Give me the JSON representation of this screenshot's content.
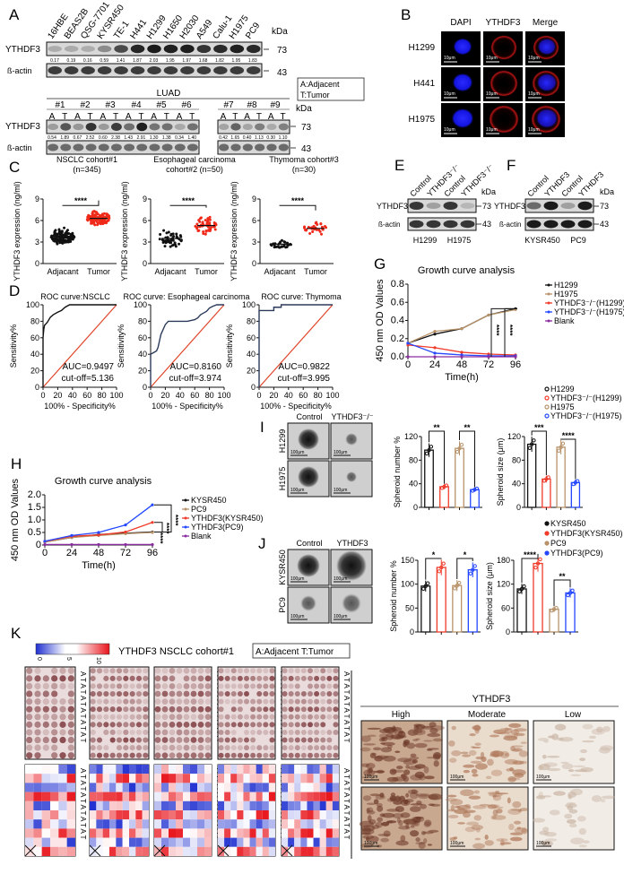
{
  "panels": {
    "A": "A",
    "B": "B",
    "C": "C",
    "D": "D",
    "E": "E",
    "F": "F",
    "G": "G",
    "H": "H",
    "I": "I",
    "J": "J",
    "K": "K"
  },
  "common": {
    "kda": "kDa",
    "ythdf3": "YTHDF3",
    "actin": "ß-actin",
    "mw_ythdf3": "73",
    "mw_actin": "43",
    "scale_10": "10μm",
    "scale_100": "100μm"
  },
  "panel_a": {
    "cell_lines": [
      "16HBE",
      "BEAS2B",
      "QSG-7701",
      "KYSR450",
      "TE-1",
      "H441",
      "H1299",
      "H1650",
      "H2030",
      "A549",
      "Calu-1",
      "H1975",
      "PC9"
    ],
    "quant": [
      "0.17",
      "0.19",
      "0.16",
      "0.59",
      "1.41",
      "1.87",
      "2.03",
      "1.95",
      "1.97",
      "1.68",
      "1.82",
      "1.95",
      "1.83"
    ],
    "intensity": [
      0.17,
      0.19,
      0.16,
      0.59,
      1.41,
      1.87,
      2.03,
      1.95,
      1.97,
      1.68,
      1.82,
      1.95,
      1.83
    ],
    "legend": [
      "A:Adjacent",
      "T:Tumor"
    ],
    "luad_title": "LUAD",
    "patients": [
      "#1",
      "#2",
      "#3",
      "#4",
      "#5",
      "#6",
      "#7",
      "#8",
      "#9"
    ],
    "at": [
      "A",
      "T"
    ],
    "luad_quant": [
      "0.54",
      "1.89",
      "0.67",
      "2.52",
      "0.60",
      "2.38",
      "1.43",
      "2.91",
      "1.30",
      "1.38",
      "0.34",
      "1.40",
      "0.42",
      "1.65",
      "0.40",
      "1.13",
      "0.30",
      "1.10"
    ],
    "luad_intensity": [
      0.54,
      1.89,
      0.67,
      2.52,
      0.6,
      2.38,
      1.43,
      2.91,
      1.3,
      1.38,
      0.34,
      1.4,
      0.42,
      1.65,
      0.4,
      1.13,
      0.3,
      1.1
    ]
  },
  "panel_b": {
    "columns": [
      "DAPI",
      "YTHDF3",
      "Merge"
    ],
    "rows": [
      "H1299",
      "H441",
      "H1975"
    ],
    "colors": {
      "dapi": "#1a1aff",
      "ythdf3": "#d01010"
    }
  },
  "panel_e": {
    "lanes": [
      "Control",
      "YTHDF3⁻/⁻",
      "Control",
      "YTHDF3⁻/⁻"
    ],
    "cells": [
      "H1299",
      "H1975"
    ],
    "intensity": [
      1,
      0.2,
      1,
      0.02
    ]
  },
  "panel_f": {
    "lanes": [
      "Control",
      "YTHDF3",
      "Control",
      "YTHDF3"
    ],
    "cells": [
      "KYSR450",
      "PC9"
    ],
    "intensity": [
      0.6,
      1.3,
      0.2,
      1.2
    ]
  },
  "panel_i": {
    "columns": [
      "Control",
      "YTHDF3⁻/⁻"
    ],
    "rows": [
      "H1299",
      "H1975"
    ],
    "legend": [
      "H1299",
      "YTHDF3⁻/⁻(H1299)",
      "H1975",
      "YTHDF3⁻/⁻(H1975)"
    ]
  },
  "panel_j": {
    "columns": [
      "Control",
      "YTHDF3"
    ],
    "rows": [
      "KYSR450",
      "PC9"
    ],
    "legend": [
      "KYSR450",
      "YTHDF3(KYSR450)",
      "PC9",
      "YTHDF3(PC9)"
    ]
  },
  "panel_k": {
    "colorbar_ticks": [
      "0",
      "5",
      "10"
    ],
    "title": "YTHDF3  NSCLC cohort#1",
    "legend": "A:Adjacent  T:Tumor",
    "at_column": "A T A T A T A T A T A T",
    "ihc_title": "YTHDF3",
    "ihc_levels": [
      "High",
      "Moderate",
      "Low"
    ],
    "colors": {
      "low": "#1f2fd0",
      "mid": "#ffffff",
      "high": "#e8141b"
    }
  },
  "series_colors": {
    "black": "#111111",
    "tan": "#b8936a",
    "red": "#f03a2a",
    "blue": "#2447ff",
    "purple": "#8a2ca0",
    "roc_ref": "#e0452a",
    "roc_curve": "#2b3a5a"
  },
  "chart_data": [
    {
      "type": "scatter",
      "title": "NSCLC cohort#1",
      "subtitle": "(n=345)",
      "ylabel": "YTHDF3 expression (ng/ml)",
      "categories": [
        "Adjacant",
        "Tumor"
      ],
      "ylim": [
        0,
        9
      ],
      "yticks": [
        "0",
        "3",
        "6",
        "9"
      ],
      "mean": [
        3.8,
        6.3
      ],
      "sd": [
        0.9,
        0.8
      ],
      "n": 345,
      "significance": "****"
    },
    {
      "type": "scatter",
      "title": "Esophageal carcinoma",
      "subtitle": "cohort#2  (n=50)",
      "ylabel": "YTHDF3 expression (ng/ml)",
      "categories": [
        "Adjacant",
        "Tumor"
      ],
      "ylim": [
        0,
        9
      ],
      "yticks": [
        "0",
        "3",
        "6",
        "9"
      ],
      "mean": [
        3.5,
        5.3
      ],
      "sd": [
        1.1,
        1.1
      ],
      "n": 50,
      "significance": "****"
    },
    {
      "type": "scatter",
      "title": "Thymoma cohort#3",
      "subtitle": "(n=30)",
      "ylabel": "YTHDF3 expression (ng/ml)",
      "categories": [
        "Adjacant",
        "Tumor"
      ],
      "ylim": [
        0,
        9
      ],
      "yticks": [
        "0",
        "3",
        "6",
        "9"
      ],
      "mean": [
        2.7,
        4.9
      ],
      "sd": [
        0.5,
        0.8
      ],
      "n": 30,
      "significance": "****"
    },
    {
      "type": "line",
      "title": "ROC curve:NSCLC",
      "xlabel": "100% - Specificity%",
      "ylabel": "Sensitivity%",
      "xlim": [
        0,
        100
      ],
      "ylim": [
        0,
        100
      ],
      "xticks": [
        "0",
        "20",
        "40",
        "60",
        "80",
        "100"
      ],
      "yticks": [
        "0",
        "20",
        "40",
        "60",
        "80",
        "100"
      ],
      "auc": "AUC=0.9497",
      "cutoff": "cut-off=5.136",
      "x": [
        0,
        0,
        1,
        2,
        4,
        6,
        10,
        14,
        20,
        25,
        30,
        36,
        100
      ],
      "y": [
        0,
        60,
        70,
        75,
        77,
        79,
        85,
        88,
        91,
        93,
        97,
        100,
        100
      ]
    },
    {
      "type": "line",
      "title": "ROC curve: Esophageal carcinoma",
      "xlabel": "",
      "ylabel": "Sensitivity%",
      "xlim": [
        0,
        100
      ],
      "ylim": [
        0,
        100
      ],
      "xticks": [
        "0",
        "20",
        "40",
        "60",
        "80",
        "100"
      ],
      "yticks": [
        "0",
        "20",
        "40",
        "60",
        "80",
        "100"
      ],
      "auc": "AUC=0.8160",
      "cutoff": "cut-off=3.974",
      "x": [
        0,
        0,
        4,
        8,
        10,
        12,
        14,
        16,
        18,
        20,
        24,
        30,
        50,
        60,
        64,
        68,
        72,
        76,
        80,
        84,
        90,
        100
      ],
      "y": [
        0,
        40,
        42,
        44,
        48,
        56,
        64,
        68,
        72,
        76,
        80,
        80,
        80,
        82,
        84,
        88,
        90,
        92,
        96,
        98,
        100,
        100
      ]
    },
    {
      "type": "line",
      "title": "ROC curve: Thymoma",
      "xlabel": "",
      "ylabel": "Sensitivity%",
      "xlim": [
        0,
        100
      ],
      "ylim": [
        0,
        100
      ],
      "xticks": [
        "0",
        "20",
        "40",
        "60",
        "80",
        "100"
      ],
      "yticks": [
        "0",
        "20",
        "40",
        "60",
        "80",
        "100"
      ],
      "auc": "AUC=0.9822",
      "cutoff": "cut-off=3.995",
      "x": [
        0,
        0,
        20,
        20,
        30,
        30,
        100
      ],
      "y": [
        0,
        93,
        93,
        97,
        97,
        100,
        100
      ]
    },
    {
      "type": "line",
      "title": "Growth curve analysis",
      "xlabel": "Time(h)",
      "ylabel": "450 nm OD Values",
      "xlim": [
        0,
        96
      ],
      "ylim": [
        0,
        0.8
      ],
      "xticks": [
        "0",
        "24",
        "48",
        "72",
        "96"
      ],
      "yticks": [
        "0.0",
        "0.2",
        "0.4",
        "0.6",
        "0.8"
      ],
      "x": [
        0,
        24,
        48,
        72,
        96
      ],
      "significance": [
        "****",
        "****"
      ],
      "series": [
        {
          "name": "H1299",
          "values": [
            0.15,
            0.25,
            0.31,
            0.46,
            0.53
          ]
        },
        {
          "name": "H1975",
          "values": [
            0.15,
            0.28,
            0.31,
            0.46,
            0.52
          ]
        },
        {
          "name": "YTHDF3⁻/⁻(H1299)",
          "values": [
            0.13,
            0.1,
            0.05,
            0.03,
            0.02
          ]
        },
        {
          "name": "YTHDF3⁻/⁻(H1975)",
          "values": [
            0.15,
            0.04,
            0.02,
            0.01,
            0.01
          ]
        },
        {
          "name": "Blank",
          "values": [
            0.0,
            0.0,
            0.0,
            0.0,
            0.0
          ]
        }
      ]
    },
    {
      "type": "line",
      "title": "Growth curve analysis",
      "xlabel": "Time(h)",
      "ylabel": "450 nm OD Values",
      "xlim": [
        0,
        96
      ],
      "ylim": [
        0,
        2.0
      ],
      "xticks": [
        "0",
        "24",
        "48",
        "72",
        "96"
      ],
      "yticks": [
        "0",
        "0.5",
        "1.0",
        "1.5",
        "2.0"
      ],
      "x": [
        0,
        24,
        48,
        72,
        96
      ],
      "significance": [
        "****",
        "****",
        "****"
      ],
      "series": [
        {
          "name": "KYSR450",
          "values": [
            0.12,
            0.3,
            0.42,
            0.47,
            0.52
          ]
        },
        {
          "name": "PC9",
          "values": [
            0.12,
            0.3,
            0.38,
            0.45,
            0.5
          ]
        },
        {
          "name": "YTHDF3(KYSR450)",
          "values": [
            0.15,
            0.35,
            0.4,
            0.52,
            0.9
          ]
        },
        {
          "name": "YTHDF3(PC9)",
          "values": [
            0.15,
            0.38,
            0.5,
            0.8,
            1.6
          ]
        },
        {
          "name": "Blank",
          "values": [
            0.02,
            0.02,
            0.02,
            0.02,
            0.02
          ]
        }
      ]
    },
    {
      "type": "bar",
      "ylabel": "Spheroid number %",
      "ylim": [
        0,
        120
      ],
      "yticks": [
        "0",
        "40",
        "80",
        "120"
      ],
      "values": [
        97,
        35,
        100,
        30
      ],
      "significance": [
        "**",
        "**"
      ]
    },
    {
      "type": "bar",
      "ylabel": "Spheroid size (μm)",
      "ylim": [
        0,
        120
      ],
      "yticks": [
        "0",
        "40",
        "80",
        "120"
      ],
      "values": [
        107,
        48,
        102,
        42
      ],
      "significance": [
        "***",
        "****"
      ]
    },
    {
      "type": "bar",
      "ylabel": "Spheroid number %",
      "ylim": [
        0,
        150
      ],
      "yticks": [
        "0",
        "50",
        "100",
        "150"
      ],
      "values": [
        96,
        135,
        97,
        130
      ],
      "significance": [
        "*",
        "*"
      ]
    },
    {
      "type": "bar",
      "ylabel": "Spheroid size (μm)",
      "ylim": [
        0,
        180
      ],
      "yticks": [
        "0",
        "60",
        "120",
        "180"
      ],
      "values": [
        108,
        172,
        57,
        98
      ],
      "significance": [
        "****",
        "**"
      ]
    }
  ]
}
